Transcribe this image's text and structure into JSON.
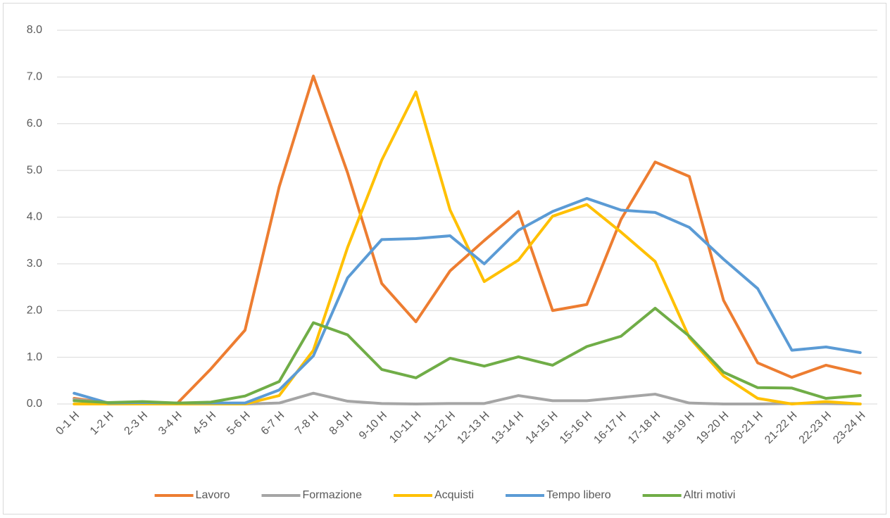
{
  "chart_data": {
    "type": "line",
    "categories": [
      "0-1 H",
      "1-2 H",
      "2-3 H",
      "3-4 H",
      "4-5 H",
      "5-6 H",
      "6-7 H",
      "7-8 H",
      "8-9 H",
      "9-10 H",
      "10-11 H",
      "11-12 H",
      "12-13 H",
      "13-14 H",
      "14-15 H",
      "15-16 H",
      "16-17 H",
      "17-18 H",
      "18-19 H",
      "19-20 H",
      "20-21 H",
      "21-22 H",
      "22-23 H",
      "23-24 H"
    ],
    "series": [
      {
        "name": "Lavoro",
        "color": "#ED7D31",
        "values": [
          0.12,
          0.02,
          0.02,
          0.0,
          0.75,
          1.58,
          4.65,
          7.02,
          4.95,
          2.58,
          1.76,
          2.85,
          3.5,
          4.12,
          2.0,
          2.13,
          3.95,
          5.18,
          4.87,
          2.22,
          0.88,
          0.57,
          0.83,
          0.66
        ]
      },
      {
        "name": "Formazione",
        "color": "#A5A5A5",
        "values": [
          0.1,
          0.02,
          0.02,
          0.0,
          0.0,
          0.0,
          0.02,
          0.23,
          0.06,
          0.01,
          0.0,
          0.01,
          0.01,
          0.18,
          0.07,
          0.07,
          0.14,
          0.21,
          0.02,
          0.0,
          0.0,
          0.01,
          0.01,
          0.0
        ]
      },
      {
        "name": "Acquisti",
        "color": "#FFC000",
        "values": [
          0.0,
          0.0,
          0.0,
          0.0,
          0.0,
          0.0,
          0.18,
          1.15,
          3.35,
          5.22,
          6.68,
          4.15,
          2.62,
          3.08,
          4.02,
          4.27,
          3.68,
          3.05,
          1.42,
          0.6,
          0.12,
          0.0,
          0.05,
          0.0
        ]
      },
      {
        "name": "Tempo libero",
        "color": "#5B9BD5",
        "values": [
          0.23,
          0.02,
          0.03,
          0.02,
          0.02,
          0.02,
          0.3,
          1.03,
          2.7,
          3.52,
          3.54,
          3.6,
          3.0,
          3.72,
          4.12,
          4.4,
          4.15,
          4.1,
          3.78,
          3.1,
          2.47,
          1.15,
          1.22,
          1.1
        ]
      },
      {
        "name": "Altri motivi",
        "color": "#70AD47",
        "values": [
          0.07,
          0.03,
          0.05,
          0.02,
          0.04,
          0.17,
          0.48,
          1.74,
          1.48,
          0.74,
          0.56,
          0.98,
          0.81,
          1.01,
          0.83,
          1.23,
          1.45,
          2.05,
          1.45,
          0.68,
          0.35,
          0.34,
          0.12,
          0.18
        ]
      }
    ],
    "ylim": [
      0,
      8
    ],
    "yticks": [
      {
        "value": 0,
        "label": "0.0"
      },
      {
        "value": 1,
        "label": "1.0"
      },
      {
        "value": 2,
        "label": "2.0"
      },
      {
        "value": 3,
        "label": "3.0"
      },
      {
        "value": 4,
        "label": "4.0"
      },
      {
        "value": 5,
        "label": "5.0"
      },
      {
        "value": 6,
        "label": "6.0"
      },
      {
        "value": 7,
        "label": "7.0"
      },
      {
        "value": 8,
        "label": "8.0"
      }
    ],
    "grid": true,
    "legend": "bottom"
  }
}
